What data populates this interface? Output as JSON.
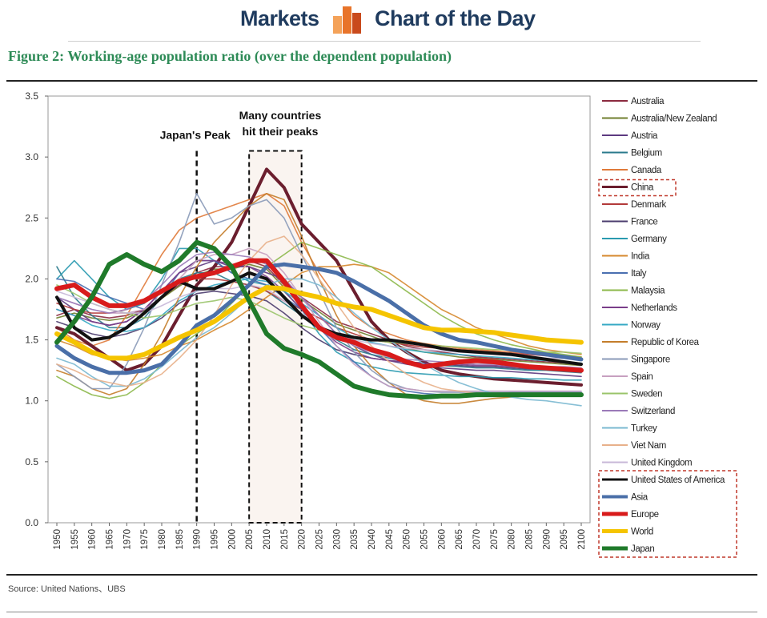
{
  "header": {
    "brand_left": "Markets",
    "brand_right": "Chart of the Day",
    "icon": "bar-chart-icon",
    "accent": "#e8742a"
  },
  "figure_title": "Figure 2:  Working-age population ratio (over the dependent population)",
  "source": "Source: United Nations、UBS",
  "chart_data": {
    "type": "line",
    "x": [
      1950,
      1955,
      1960,
      1965,
      1970,
      1975,
      1980,
      1985,
      1990,
      1995,
      2000,
      2005,
      2010,
      2015,
      2020,
      2025,
      2030,
      2035,
      2040,
      2045,
      2050,
      2055,
      2060,
      2065,
      2070,
      2075,
      2080,
      2085,
      2090,
      2095,
      2100
    ],
    "ylim": [
      0,
      3.5
    ],
    "yticks": [
      "0.0",
      "0.5",
      "1.0",
      "1.5",
      "2.0",
      "2.5",
      "3.0",
      "3.5"
    ],
    "grid": false,
    "legend_position": "right",
    "annotations": {
      "japan_peak": "Japan's Peak",
      "many_peaks_line1": "Many countries",
      "many_peaks_line2": "hit their peaks"
    },
    "series": [
      {
        "name": "Australia",
        "color": "#8b2a3f",
        "values": [
          1.7,
          1.75,
          1.7,
          1.68,
          1.7,
          1.75,
          1.85,
          1.95,
          2.05,
          2.1,
          2.1,
          2.15,
          2.1,
          1.95,
          1.85,
          1.75,
          1.65,
          1.6,
          1.55,
          1.5,
          1.45,
          1.42,
          1.4,
          1.38,
          1.36,
          1.35,
          1.34,
          1.33,
          1.32,
          1.31,
          1.3
        ]
      },
      {
        "name": "Australia/New Zealand",
        "color": "#6f7f2e",
        "values": [
          1.68,
          1.72,
          1.68,
          1.66,
          1.68,
          1.74,
          1.84,
          1.94,
          2.03,
          2.08,
          2.08,
          2.12,
          2.08,
          1.93,
          1.83,
          1.73,
          1.63,
          1.58,
          1.53,
          1.48,
          1.43,
          1.4,
          1.38,
          1.36,
          1.35,
          1.34,
          1.33,
          1.32,
          1.31,
          1.3,
          1.29
        ]
      },
      {
        "name": "Austria",
        "color": "#5d3a80",
        "values": [
          1.85,
          1.75,
          1.65,
          1.62,
          1.65,
          1.75,
          1.9,
          2.05,
          2.1,
          2.15,
          2.1,
          2.1,
          2.05,
          2.0,
          1.85,
          1.7,
          1.55,
          1.45,
          1.38,
          1.33,
          1.3,
          1.28,
          1.27,
          1.26,
          1.25,
          1.25,
          1.24,
          1.23,
          1.22,
          1.21,
          1.2
        ]
      },
      {
        "name": "Belgium",
        "color": "#2a7a8c",
        "values": [
          2.1,
          1.85,
          1.7,
          1.6,
          1.6,
          1.68,
          1.85,
          2.0,
          2.05,
          2.05,
          1.98,
          1.95,
          1.9,
          1.8,
          1.7,
          1.6,
          1.5,
          1.42,
          1.38,
          1.35,
          1.32,
          1.3,
          1.29,
          1.28,
          1.27,
          1.27,
          1.26,
          1.25,
          1.25,
          1.24,
          1.23
        ]
      },
      {
        "name": "Canada",
        "color": "#e07a3a",
        "values": [
          1.6,
          1.5,
          1.45,
          1.5,
          1.7,
          1.95,
          2.2,
          2.4,
          2.5,
          2.55,
          2.6,
          2.65,
          2.7,
          2.6,
          2.3,
          2.05,
          1.85,
          1.7,
          1.6,
          1.55,
          1.5,
          1.47,
          1.45,
          1.43,
          1.42,
          1.41,
          1.4,
          1.39,
          1.38,
          1.37,
          1.36
        ]
      },
      {
        "name": "China",
        "color": "#6b1e2e",
        "values": [
          1.6,
          1.55,
          1.45,
          1.35,
          1.25,
          1.3,
          1.45,
          1.7,
          1.95,
          2.1,
          2.3,
          2.6,
          2.9,
          2.75,
          2.45,
          2.3,
          2.15,
          1.9,
          1.65,
          1.5,
          1.4,
          1.32,
          1.25,
          1.22,
          1.2,
          1.18,
          1.17,
          1.16,
          1.15,
          1.14,
          1.13
        ]
      },
      {
        "name": "Denmark",
        "color": "#b23a3a",
        "values": [
          1.8,
          1.75,
          1.72,
          1.72,
          1.75,
          1.8,
          1.9,
          2.0,
          2.0,
          2.0,
          1.98,
          1.95,
          1.9,
          1.82,
          1.75,
          1.68,
          1.6,
          1.55,
          1.5,
          1.48,
          1.46,
          1.44,
          1.43,
          1.42,
          1.41,
          1.4,
          1.39,
          1.38,
          1.37,
          1.36,
          1.35
        ]
      },
      {
        "name": "France",
        "color": "#4b3c6e",
        "values": [
          1.65,
          1.6,
          1.55,
          1.52,
          1.55,
          1.6,
          1.68,
          1.8,
          1.88,
          1.9,
          1.88,
          1.86,
          1.82,
          1.72,
          1.6,
          1.5,
          1.42,
          1.38,
          1.35,
          1.33,
          1.32,
          1.31,
          1.3,
          1.29,
          1.28,
          1.28,
          1.27,
          1.26,
          1.26,
          1.25,
          1.25
        ]
      },
      {
        "name": "Germany",
        "color": "#2a9ab0",
        "values": [
          2.0,
          2.15,
          2.0,
          1.85,
          1.75,
          1.8,
          2.0,
          2.25,
          2.25,
          2.15,
          2.05,
          1.98,
          1.95,
          1.9,
          1.75,
          1.55,
          1.4,
          1.32,
          1.28,
          1.25,
          1.23,
          1.22,
          1.21,
          1.2,
          1.2,
          1.19,
          1.19,
          1.18,
          1.18,
          1.17,
          1.17
        ]
      },
      {
        "name": "India",
        "color": "#d6882e",
        "values": [
          1.5,
          1.45,
          1.38,
          1.35,
          1.33,
          1.35,
          1.38,
          1.45,
          1.5,
          1.58,
          1.65,
          1.75,
          1.85,
          1.95,
          2.05,
          2.1,
          2.1,
          2.12,
          2.1,
          2.05,
          1.95,
          1.85,
          1.75,
          1.68,
          1.6,
          1.55,
          1.5,
          1.45,
          1.42,
          1.4,
          1.38
        ]
      },
      {
        "name": "Italy",
        "color": "#4a6fb0",
        "values": [
          2.0,
          1.98,
          1.9,
          1.85,
          1.8,
          1.75,
          1.85,
          2.05,
          2.15,
          2.15,
          2.05,
          2.0,
          1.95,
          1.85,
          1.75,
          1.6,
          1.45,
          1.32,
          1.2,
          1.12,
          1.08,
          1.06,
          1.05,
          1.05,
          1.06,
          1.06,
          1.07,
          1.07,
          1.07,
          1.07,
          1.07
        ]
      },
      {
        "name": "Malaysia",
        "color": "#8cb84a",
        "values": [
          1.2,
          1.12,
          1.05,
          1.02,
          1.05,
          1.15,
          1.3,
          1.45,
          1.55,
          1.65,
          1.8,
          1.95,
          2.1,
          2.2,
          2.3,
          2.25,
          2.2,
          2.15,
          2.1,
          2.0,
          1.9,
          1.8,
          1.7,
          1.62,
          1.55,
          1.5,
          1.46,
          1.43,
          1.4,
          1.38,
          1.36
        ]
      },
      {
        "name": "Netherlands",
        "color": "#7a3e8a",
        "values": [
          1.75,
          1.7,
          1.65,
          1.62,
          1.65,
          1.75,
          1.9,
          2.05,
          2.15,
          2.15,
          2.12,
          2.1,
          2.02,
          1.9,
          1.75,
          1.6,
          1.48,
          1.4,
          1.35,
          1.33,
          1.32,
          1.31,
          1.3,
          1.3,
          1.29,
          1.29,
          1.28,
          1.28,
          1.27,
          1.27,
          1.26
        ]
      },
      {
        "name": "Norway",
        "color": "#35a8c4",
        "values": [
          1.75,
          1.7,
          1.62,
          1.58,
          1.57,
          1.6,
          1.7,
          1.82,
          1.9,
          1.95,
          1.98,
          2.0,
          1.98,
          1.9,
          1.8,
          1.7,
          1.6,
          1.52,
          1.48,
          1.45,
          1.42,
          1.4,
          1.39,
          1.38,
          1.37,
          1.36,
          1.35,
          1.34,
          1.33,
          1.32,
          1.31
        ]
      },
      {
        "name": "Republic of Korea",
        "color": "#c47d2a",
        "values": [
          1.25,
          1.2,
          1.1,
          1.05,
          1.1,
          1.3,
          1.55,
          1.85,
          2.1,
          2.3,
          2.45,
          2.6,
          2.7,
          2.65,
          2.35,
          2.0,
          1.7,
          1.45,
          1.28,
          1.15,
          1.05,
          1.0,
          0.98,
          0.98,
          1.0,
          1.02,
          1.03,
          1.04,
          1.05,
          1.05,
          1.05
        ]
      },
      {
        "name": "Singapore",
        "color": "#8a9ab8",
        "values": [
          1.3,
          1.2,
          1.1,
          1.1,
          1.3,
          1.6,
          1.95,
          2.3,
          2.7,
          2.45,
          2.5,
          2.6,
          2.65,
          2.5,
          2.2,
          1.9,
          1.6,
          1.4,
          1.25,
          1.15,
          1.1,
          1.08,
          1.07,
          1.07,
          1.07,
          1.07,
          1.07,
          1.07,
          1.07,
          1.07,
          1.07
        ]
      },
      {
        "name": "Spain",
        "color": "#c7a0c0",
        "values": [
          1.85,
          1.8,
          1.75,
          1.72,
          1.72,
          1.75,
          1.85,
          2.0,
          2.15,
          2.2,
          2.2,
          2.25,
          2.2,
          2.05,
          1.85,
          1.65,
          1.45,
          1.3,
          1.2,
          1.12,
          1.1,
          1.08,
          1.08,
          1.08,
          1.08,
          1.08,
          1.08,
          1.08,
          1.08,
          1.08,
          1.08
        ]
      },
      {
        "name": "Sweden",
        "color": "#9ac46a",
        "values": [
          1.95,
          1.88,
          1.8,
          1.75,
          1.72,
          1.68,
          1.7,
          1.75,
          1.8,
          1.82,
          1.85,
          1.82,
          1.75,
          1.68,
          1.62,
          1.58,
          1.55,
          1.52,
          1.5,
          1.48,
          1.47,
          1.46,
          1.45,
          1.44,
          1.43,
          1.42,
          1.42,
          1.41,
          1.4,
          1.4,
          1.39
        ]
      },
      {
        "name": "Switzerland",
        "color": "#9a7ab8",
        "values": [
          1.85,
          1.8,
          1.75,
          1.72,
          1.75,
          1.82,
          1.95,
          2.1,
          2.2,
          2.22,
          2.2,
          2.18,
          2.12,
          2.0,
          1.85,
          1.7,
          1.55,
          1.45,
          1.4,
          1.36,
          1.34,
          1.33,
          1.32,
          1.31,
          1.3,
          1.3,
          1.29,
          1.29,
          1.28,
          1.28,
          1.27
        ]
      },
      {
        "name": "Turkey",
        "color": "#7ab8d0",
        "values": [
          1.35,
          1.3,
          1.2,
          1.12,
          1.12,
          1.18,
          1.28,
          1.4,
          1.52,
          1.6,
          1.72,
          1.85,
          1.95,
          2.0,
          2.0,
          1.95,
          1.85,
          1.72,
          1.6,
          1.5,
          1.4,
          1.3,
          1.22,
          1.15,
          1.1,
          1.06,
          1.03,
          1.01,
          1.0,
          0.98,
          0.96
        ]
      },
      {
        "name": "Viet Nam",
        "color": "#e8b08a",
        "values": [
          1.3,
          1.25,
          1.18,
          1.15,
          1.12,
          1.15,
          1.22,
          1.35,
          1.5,
          1.7,
          1.95,
          2.15,
          2.3,
          2.35,
          2.2,
          2.0,
          1.8,
          1.6,
          1.45,
          1.32,
          1.22,
          1.15,
          1.1,
          1.08,
          1.06,
          1.05,
          1.05,
          1.05,
          1.05,
          1.05,
          1.05
        ]
      },
      {
        "name": "United Kingdom",
        "color": "#c8b8d8",
        "values": [
          1.9,
          1.85,
          1.8,
          1.75,
          1.72,
          1.72,
          1.78,
          1.85,
          1.9,
          1.92,
          1.92,
          1.95,
          1.92,
          1.82,
          1.72,
          1.62,
          1.55,
          1.5,
          1.47,
          1.45,
          1.43,
          1.42,
          1.41,
          1.4,
          1.39,
          1.38,
          1.37,
          1.36,
          1.35,
          1.35,
          1.34
        ]
      },
      {
        "name": "United States of America",
        "color": "#111111",
        "values": [
          1.85,
          1.6,
          1.5,
          1.52,
          1.6,
          1.72,
          1.85,
          1.98,
          1.92,
          1.92,
          1.98,
          2.05,
          2.0,
          1.85,
          1.7,
          1.6,
          1.55,
          1.52,
          1.5,
          1.5,
          1.48,
          1.46,
          1.43,
          1.41,
          1.4,
          1.39,
          1.38,
          1.36,
          1.34,
          1.32,
          1.3
        ]
      },
      {
        "name": "Asia",
        "color": "#4a6fa8",
        "values": [
          1.45,
          1.35,
          1.28,
          1.23,
          1.23,
          1.25,
          1.3,
          1.45,
          1.62,
          1.7,
          1.82,
          1.95,
          2.1,
          2.12,
          2.1,
          2.08,
          2.05,
          1.98,
          1.9,
          1.82,
          1.72,
          1.62,
          1.55,
          1.5,
          1.48,
          1.45,
          1.42,
          1.4,
          1.38,
          1.36,
          1.34
        ]
      },
      {
        "name": "Europe",
        "color": "#d81b1b",
        "values": [
          1.92,
          1.95,
          1.85,
          1.78,
          1.78,
          1.82,
          1.9,
          1.98,
          2.02,
          2.05,
          2.1,
          2.15,
          2.15,
          1.98,
          1.78,
          1.6,
          1.52,
          1.48,
          1.42,
          1.38,
          1.32,
          1.28,
          1.3,
          1.32,
          1.33,
          1.32,
          1.3,
          1.28,
          1.27,
          1.26,
          1.25
        ]
      },
      {
        "name": "World",
        "color": "#f5c400",
        "values": [
          1.55,
          1.48,
          1.4,
          1.35,
          1.35,
          1.38,
          1.45,
          1.52,
          1.58,
          1.65,
          1.75,
          1.85,
          1.93,
          1.92,
          1.88,
          1.85,
          1.8,
          1.77,
          1.75,
          1.7,
          1.65,
          1.6,
          1.58,
          1.58,
          1.57,
          1.56,
          1.54,
          1.52,
          1.5,
          1.49,
          1.48
        ]
      },
      {
        "name": "Japan",
        "color": "#1f7a2a",
        "values": [
          1.48,
          1.65,
          1.85,
          2.12,
          2.2,
          2.12,
          2.06,
          2.15,
          2.3,
          2.25,
          2.1,
          1.82,
          1.55,
          1.43,
          1.38,
          1.32,
          1.22,
          1.12,
          1.08,
          1.05,
          1.04,
          1.03,
          1.04,
          1.04,
          1.05,
          1.05,
          1.05,
          1.05,
          1.05,
          1.05,
          1.05
        ]
      }
    ]
  }
}
